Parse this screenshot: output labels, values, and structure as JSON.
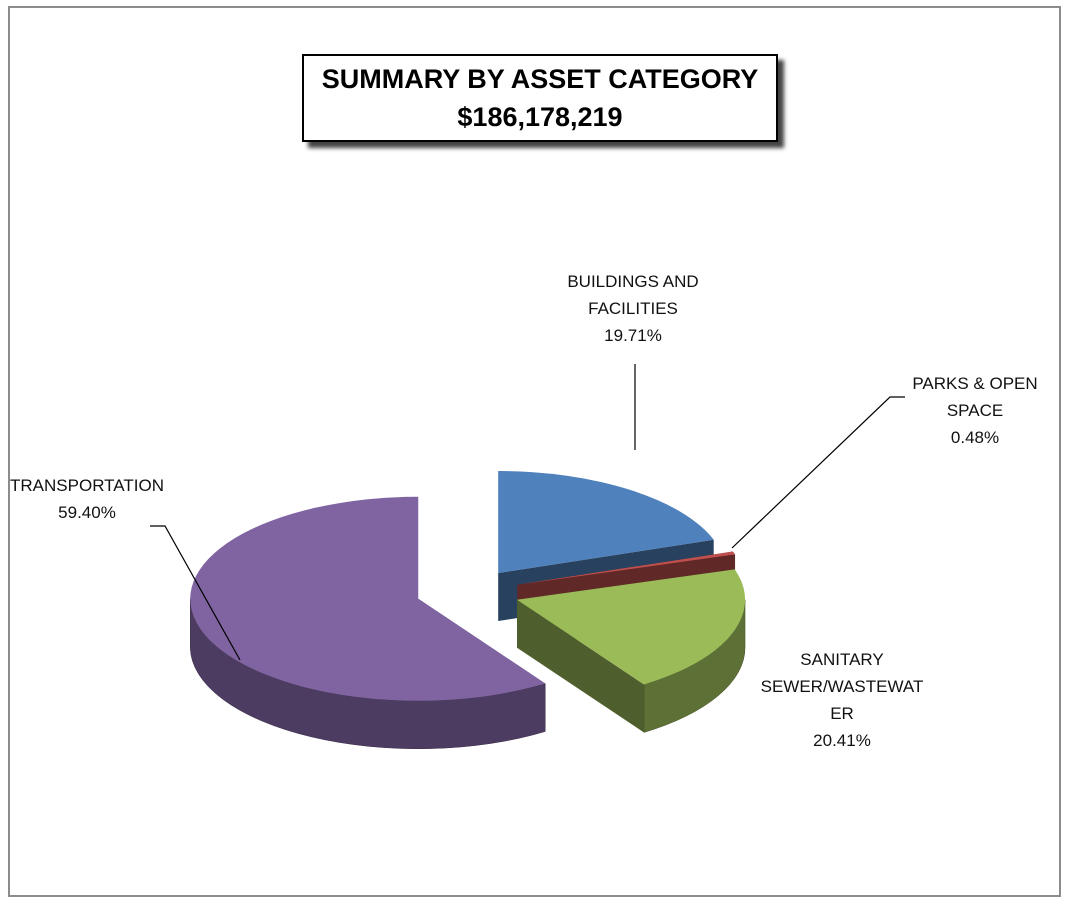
{
  "chart_data": {
    "type": "pie3d",
    "title": "SUMMARY BY ASSET CATEGORY",
    "subtitle": "$186,178,219",
    "categories": [
      "BUILDINGS AND FACILITIES",
      "PARKS & OPEN SPACE",
      "SANITARY SEWER/WASTEWATER",
      "TRANSPORTATION"
    ],
    "values": [
      19.71,
      0.48,
      20.41,
      59.4
    ],
    "value_labels": [
      "19.71%",
      "0.48%",
      "20.41%",
      "59.40%"
    ],
    "colors": [
      "#4f81bd",
      "#c0504d",
      "#9bbb59",
      "#8064a2"
    ]
  }
}
